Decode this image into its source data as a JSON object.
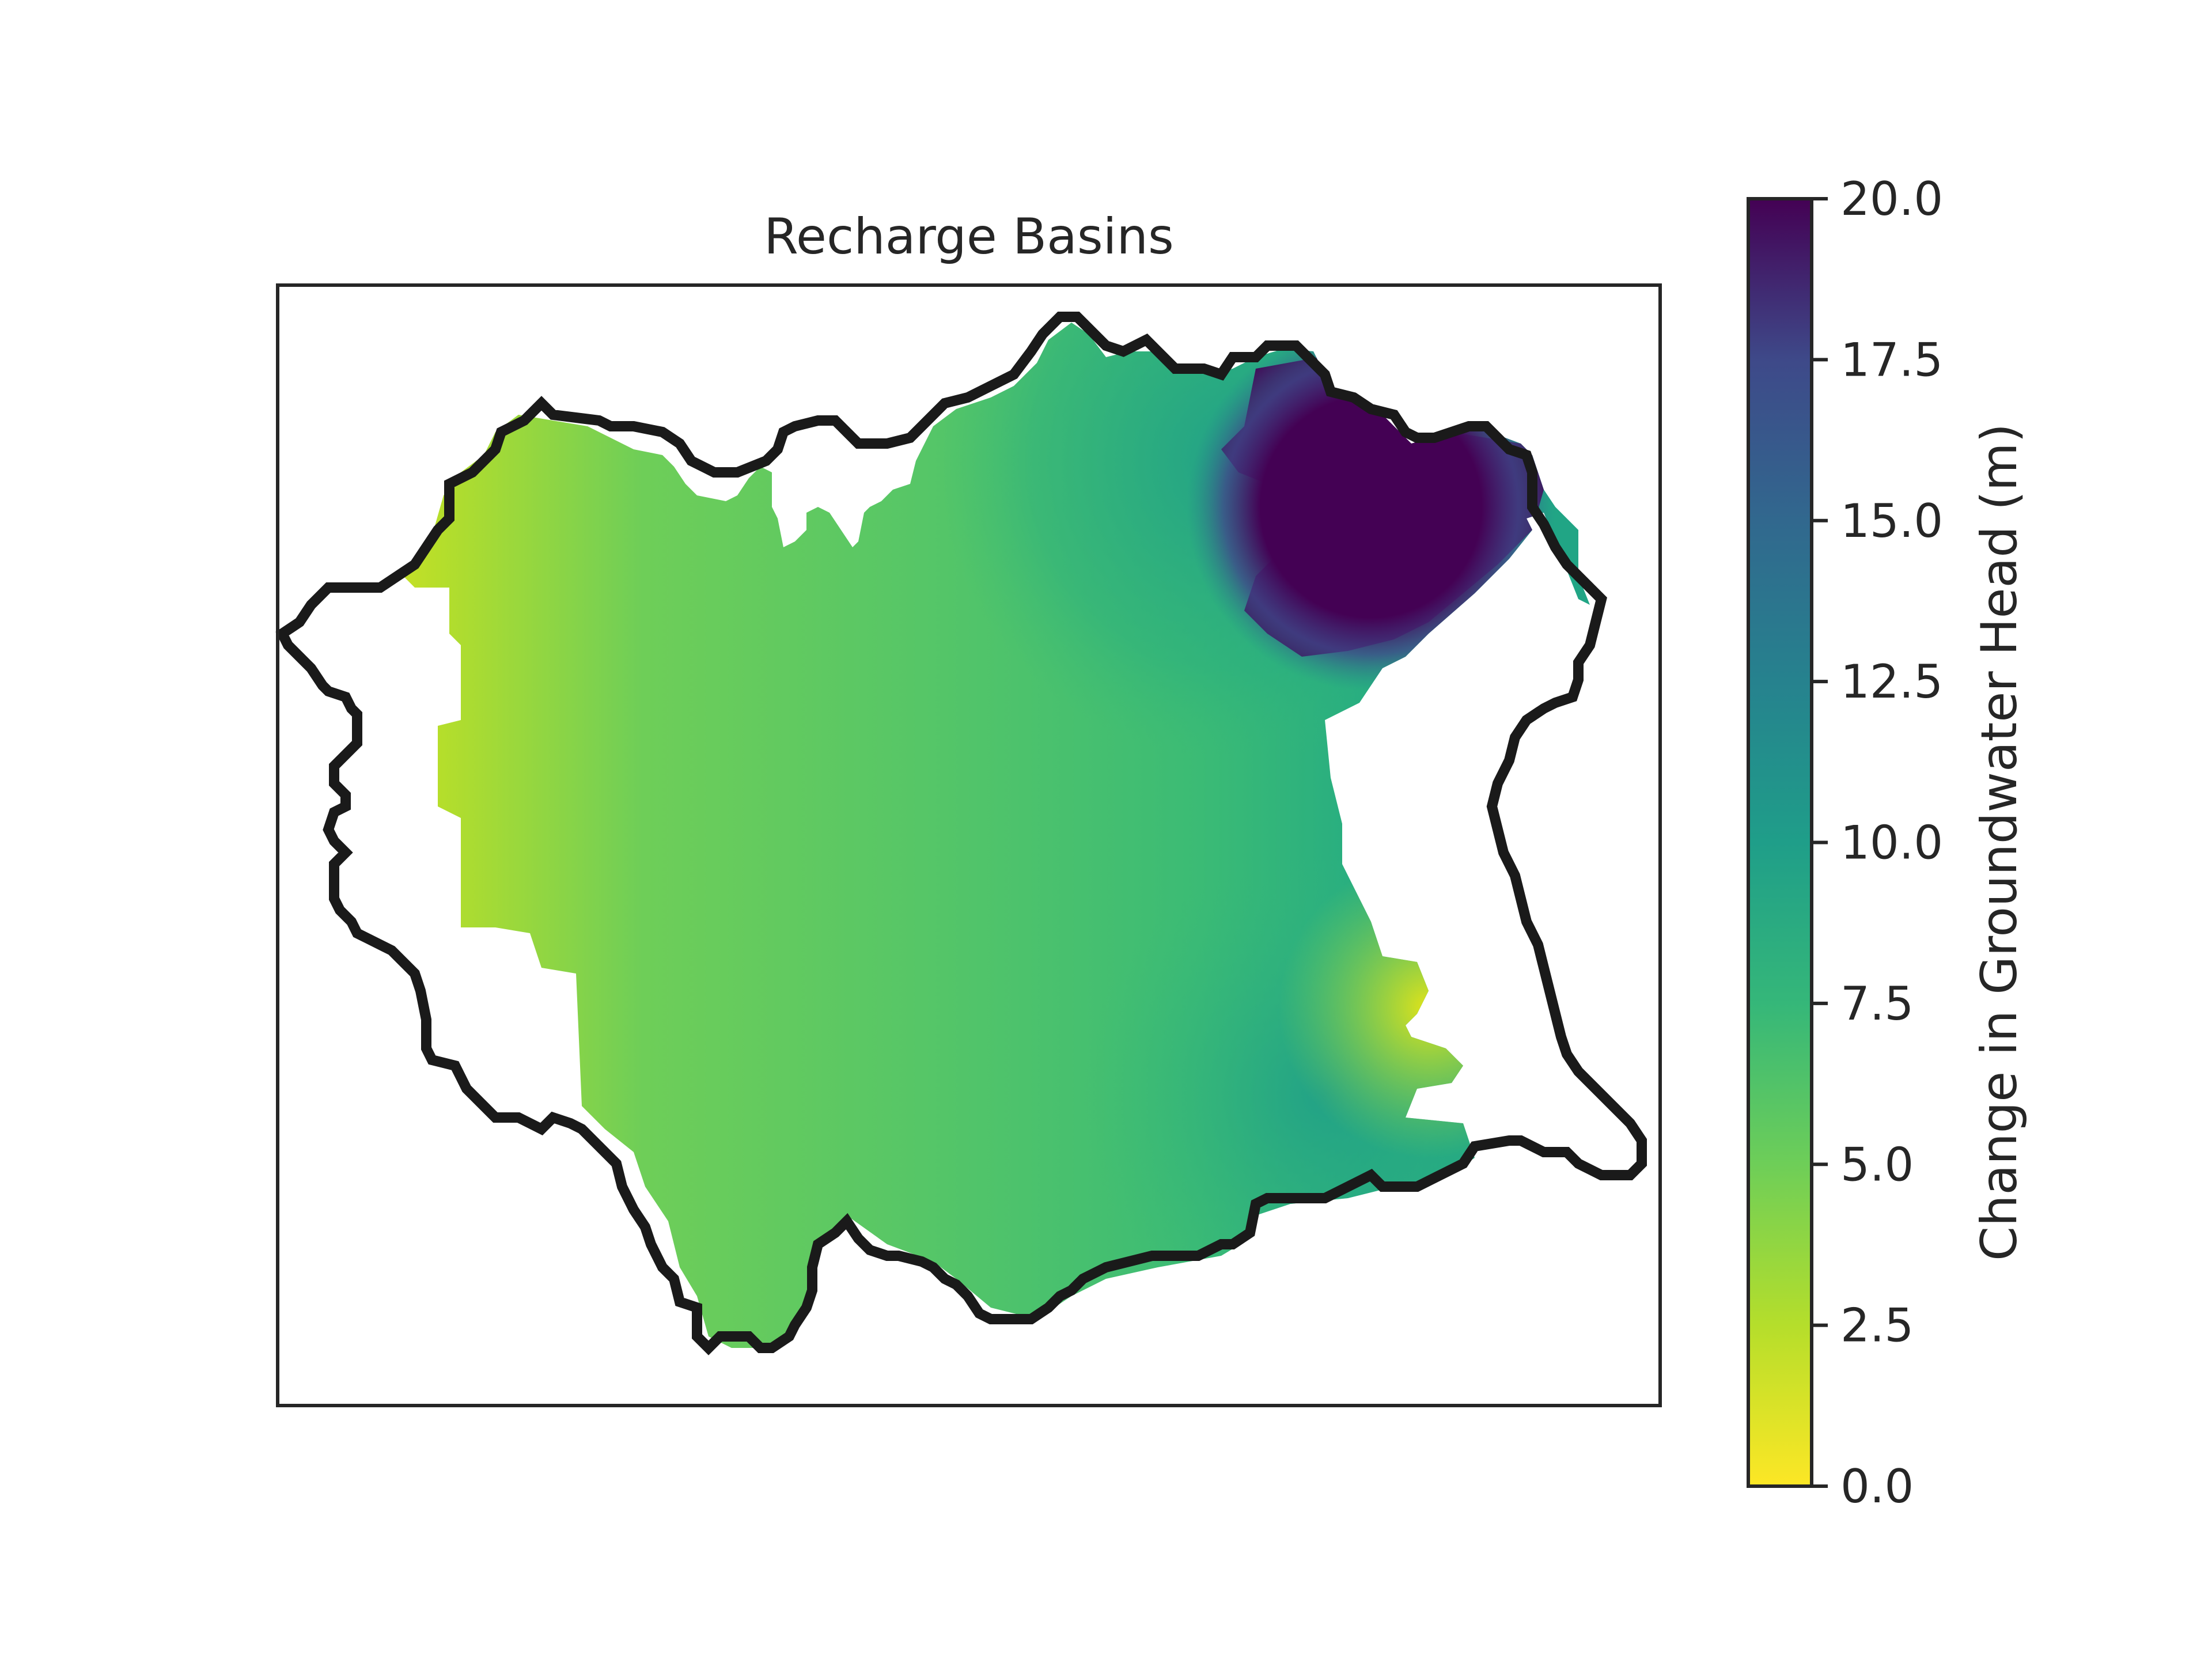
{
  "chart_data": {
    "type": "heatmap",
    "title": "Recharge Basins",
    "colormap": "viridis_r",
    "colorbar": {
      "label": "Change in Groundwater Head (m)",
      "range": [
        0.0,
        20.0
      ],
      "ticks": [
        "0.0",
        "2.5",
        "5.0",
        "7.5",
        "10.0",
        "12.5",
        "15.0",
        "17.5",
        "20.0"
      ],
      "tick_values": [
        0,
        2.5,
        5,
        7.5,
        10,
        12.5,
        15,
        17.5,
        20
      ]
    },
    "axes": {
      "x_ticks_visible": false,
      "y_ticks_visible": false,
      "grid": false
    },
    "colors": {
      "boundary": "#1a1a1a",
      "frame": "#262626",
      "text": "#262626"
    },
    "field_summary": {
      "west_edge": 1.0,
      "central": 5.5,
      "east_interior": 8.0,
      "northeast_corner": 20.0
    }
  }
}
